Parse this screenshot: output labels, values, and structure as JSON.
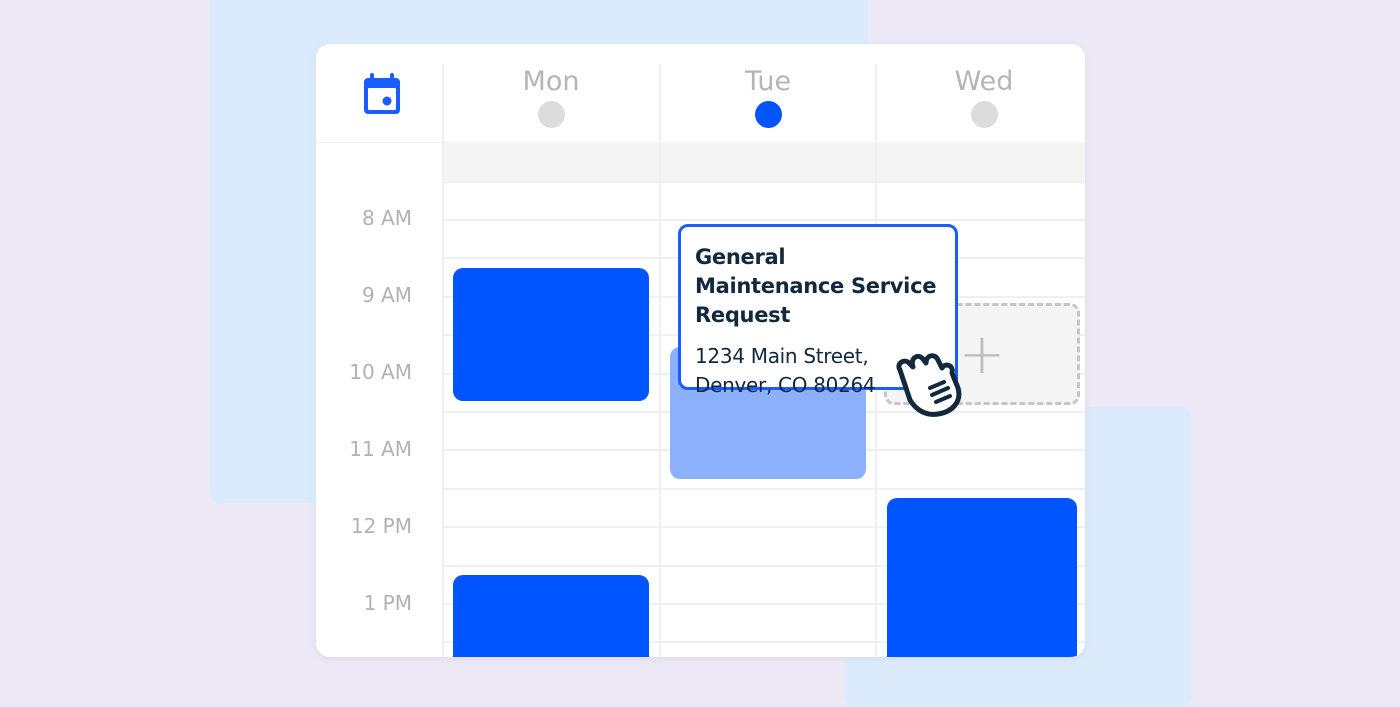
{
  "calendar": {
    "days": [
      {
        "label": "Mon",
        "selected": false
      },
      {
        "label": "Tue",
        "selected": true
      },
      {
        "label": "Wed",
        "selected": false
      }
    ],
    "times": [
      "8 AM",
      "9 AM",
      "10 AM",
      "11 AM",
      "12 PM",
      "1 PM"
    ],
    "colors": {
      "accent": "#0055ff",
      "pending": "#8db0fc",
      "dot_inactive": "#dcdcdc"
    }
  },
  "tooltip": {
    "title": "General Maintenance Service Request",
    "address_line1": "1234 Main Street,",
    "address_line2": "Denver, CO 80264"
  },
  "add_slot": {
    "icon": "plus-icon",
    "label": "+"
  }
}
